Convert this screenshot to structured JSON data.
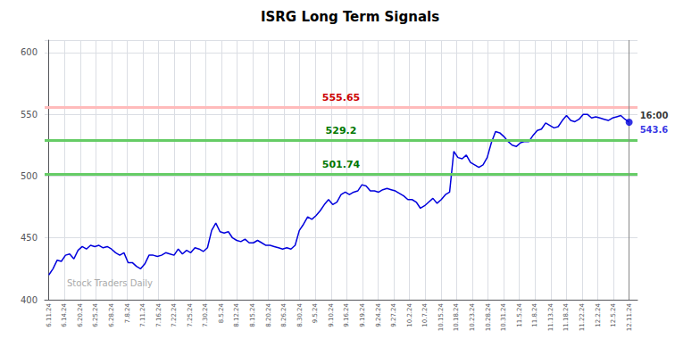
{
  "chart_data": {
    "type": "line",
    "title": "ISRG Long Term Signals",
    "color": "#0000dd",
    "x": [
      0,
      1,
      2,
      3,
      4,
      5,
      6,
      7,
      8,
      9,
      10,
      11,
      12,
      13,
      14,
      15,
      16,
      17,
      18,
      19,
      20,
      21,
      22,
      23,
      24,
      25,
      26,
      27,
      28,
      29,
      30,
      31,
      32,
      33,
      34,
      35,
      36,
      37,
      38,
      39,
      40,
      41,
      42,
      43,
      44,
      45,
      46,
      47,
      48,
      49,
      50,
      51,
      52,
      53,
      54,
      55,
      56,
      57,
      58,
      59,
      60,
      61,
      62,
      63,
      64,
      65,
      66,
      67,
      68,
      69,
      70,
      71,
      72,
      73,
      74,
      75,
      76,
      77,
      78,
      79,
      80,
      81,
      82,
      83,
      84,
      85,
      86,
      87,
      88,
      89,
      90,
      91,
      92,
      93,
      94,
      95,
      96,
      97,
      98,
      99,
      100,
      101,
      102,
      103,
      104,
      105,
      106,
      107,
      108,
      109,
      110,
      111,
      112,
      113,
      114,
      115,
      116,
      117,
      118,
      119,
      120,
      121,
      122,
      123,
      124,
      125,
      126,
      127,
      128,
      129,
      130,
      131,
      132,
      133,
      134,
      135,
      136,
      137,
      138,
      139
    ],
    "values": [
      420,
      425,
      432,
      431,
      436,
      437,
      433,
      440,
      443,
      441,
      444,
      443,
      444,
      442,
      443,
      441,
      438,
      436,
      438,
      430,
      430,
      427,
      425,
      429,
      436,
      436,
      435,
      436,
      438,
      437,
      436,
      441,
      437,
      440,
      438,
      442,
      441,
      439,
      442,
      456,
      462,
      455,
      454,
      455,
      450,
      448,
      447,
      449,
      446,
      446,
      448,
      446,
      444,
      444,
      443,
      442,
      441,
      442,
      441,
      444,
      456,
      461,
      467,
      465,
      468,
      472,
      477,
      481,
      477,
      479,
      485,
      487,
      485,
      487,
      488,
      493,
      492,
      488,
      488,
      487,
      489,
      490,
      489,
      488,
      486,
      484,
      481,
      481,
      479,
      474,
      476,
      479,
      482,
      478,
      481,
      485,
      487,
      520,
      515,
      514,
      517,
      511,
      509,
      507,
      509,
      515,
      527,
      536,
      535,
      532,
      528,
      525,
      524,
      527,
      528,
      528,
      533,
      537,
      538,
      543,
      541,
      539,
      540,
      545,
      549,
      545,
      544,
      546,
      550,
      550,
      547,
      548,
      547,
      546,
      545,
      547,
      548,
      549,
      546,
      543.6
    ],
    "xlim": [
      -1,
      141
    ],
    "xticks": [
      {
        "value": 0,
        "label": "6.11.24"
      },
      {
        "value": 3.756756756756757,
        "label": "6.14.24"
      },
      {
        "value": 7.513513513513513,
        "label": "6.20.24"
      },
      {
        "value": 11.27027027027027,
        "label": "6.25.24"
      },
      {
        "value": 15.027027027027026,
        "label": "6.28.24"
      },
      {
        "value": 18.783783783783782,
        "label": "7.8.24"
      },
      {
        "value": 22.54054054054054,
        "label": "7.11.24"
      },
      {
        "value": 26.2972972972973,
        "label": "7.16.24"
      },
      {
        "value": 30.054054054054053,
        "label": "7.22.24"
      },
      {
        "value": 33.810810810810814,
        "label": "7.25.24"
      },
      {
        "value": 37.567567567567565,
        "label": "7.30.24"
      },
      {
        "value": 41.32432432432432,
        "label": "8.5.24"
      },
      {
        "value": 45.08108108108108,
        "label": "8.12.24"
      },
      {
        "value": 48.83783783783784,
        "label": "8.15.24"
      },
      {
        "value": 52.5945945945946,
        "label": "8.20.24"
      },
      {
        "value": 56.351351351351354,
        "label": "8.26.24"
      },
      {
        "value": 60.108108108108105,
        "label": "8.30.24"
      },
      {
        "value": 63.86486486486486,
        "label": "9.5.24"
      },
      {
        "value": 67.62162162162163,
        "label": "9.10.24"
      },
      {
        "value": 71.37837837837837,
        "label": "9.16.24"
      },
      {
        "value": 75.13513513513513,
        "label": "9.19.24"
      },
      {
        "value": 78.89189189189189,
        "label": "9.24.24"
      },
      {
        "value": 82.64864864864865,
        "label": "9.27.24"
      },
      {
        "value": 86.4054054054054,
        "label": "10.2.24"
      },
      {
        "value": 90.16216216216216,
        "label": "10.7.24"
      },
      {
        "value": 93.91891891891892,
        "label": "10.15.24"
      },
      {
        "value": 97.67567567567568,
        "label": "10.18.24"
      },
      {
        "value": 101.43243243243244,
        "label": "10.23.24"
      },
      {
        "value": 105.1891891891892,
        "label": "10.28.24"
      },
      {
        "value": 108.94594594594595,
        "label": "10.31.24"
      },
      {
        "value": 112.70270270270271,
        "label": "11.5.24"
      },
      {
        "value": 116.45945945945945,
        "label": "11.8.24"
      },
      {
        "value": 120.21621621621621,
        "label": "11.13.24"
      },
      {
        "value": 123.97297297297297,
        "label": "11.18.24"
      },
      {
        "value": 127.72972972972973,
        "label": "11.22.24"
      },
      {
        "value": 131.48648648648648,
        "label": "12.2.24"
      },
      {
        "value": 135.24324324324326,
        "label": "12.5.24"
      },
      {
        "value": 139,
        "label": "12.11.24"
      }
    ],
    "ylim": [
      400,
      610
    ],
    "yticks": [
      400,
      450,
      500,
      550,
      600
    ],
    "grid": true,
    "hlines": [
      {
        "y": 555.65,
        "label": "555.65",
        "color": "#ffbbbb",
        "label_color": "#cc0000"
      },
      {
        "y": 529.2,
        "label": "529.2",
        "color": "#66cc66",
        "label_color": "#007700"
      },
      {
        "y": 501.74,
        "label": "501.74",
        "color": "#66cc66",
        "label_color": "#007700"
      }
    ],
    "watermark": "Stock Traders Daily",
    "end_time_label": "16:00",
    "end_value_label": "543.6"
  }
}
